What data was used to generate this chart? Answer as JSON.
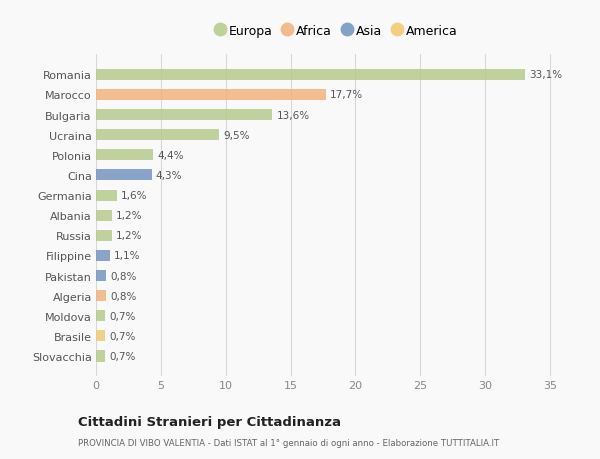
{
  "categories": [
    "Romania",
    "Marocco",
    "Bulgaria",
    "Ucraina",
    "Polonia",
    "Cina",
    "Germania",
    "Albania",
    "Russia",
    "Filippine",
    "Pakistan",
    "Algeria",
    "Moldova",
    "Brasile",
    "Slovacchia"
  ],
  "values": [
    33.1,
    17.7,
    13.6,
    9.5,
    4.4,
    4.3,
    1.6,
    1.2,
    1.2,
    1.1,
    0.8,
    0.8,
    0.7,
    0.7,
    0.7
  ],
  "labels": [
    "33,1%",
    "17,7%",
    "13,6%",
    "9,5%",
    "4,4%",
    "4,3%",
    "1,6%",
    "1,2%",
    "1,2%",
    "1,1%",
    "0,8%",
    "0,8%",
    "0,7%",
    "0,7%",
    "0,7%"
  ],
  "colors": [
    "#b5c98a",
    "#f0b07a",
    "#b5c98a",
    "#b5c98a",
    "#b5c98a",
    "#7092be",
    "#b5c98a",
    "#b5c98a",
    "#b5c98a",
    "#7092be",
    "#7092be",
    "#f0b07a",
    "#b5c98a",
    "#f0c86e",
    "#b5c98a"
  ],
  "legend_labels": [
    "Europa",
    "Africa",
    "Asia",
    "America"
  ],
  "legend_colors": [
    "#b5c98a",
    "#f0b07a",
    "#7092be",
    "#f0c86e"
  ],
  "title": "Cittadini Stranieri per Cittadinanza",
  "subtitle": "PROVINCIA DI VIBO VALENTIA - Dati ISTAT al 1° gennaio di ogni anno - Elaborazione TUTTITALIA.IT",
  "xlim": [
    0,
    37
  ],
  "xticks": [
    0,
    5,
    10,
    15,
    20,
    25,
    30,
    35
  ],
  "bg_color": "#f9f9f9",
  "grid_color": "#d8d8d8",
  "bar_height": 0.55
}
